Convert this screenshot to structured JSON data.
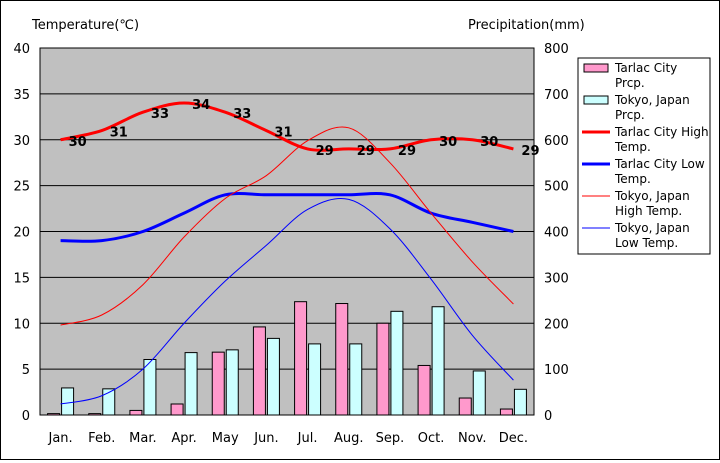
{
  "chart_data": {
    "type": "bar",
    "left_axis_title": "Temperature(℃)",
    "right_axis_title": "Precipitation(mm)",
    "categories": [
      "Jan.",
      "Feb.",
      "Mar.",
      "Apr.",
      "May",
      "Jun.",
      "Jul.",
      "Aug.",
      "Sep.",
      "Oct.",
      "Nov.",
      "Dec."
    ],
    "temp_axis": {
      "min": 0,
      "max": 40,
      "step": 5,
      "ticks": [
        "0",
        "5",
        "10",
        "15",
        "20",
        "25",
        "30",
        "35",
        "40"
      ]
    },
    "precip_axis": {
      "min": 0,
      "max": 800,
      "step": 100,
      "ticks": [
        "0",
        "100",
        "200",
        "300",
        "400",
        "500",
        "600",
        "700",
        "800"
      ]
    },
    "grid": true,
    "legend_placement": "right",
    "bar_series": [
      {
        "name": "Tarlac City Prcp.",
        "legend_lines": [
          "Tarlac City",
          "Prcp."
        ],
        "color": "#ff99cc",
        "axis": "precip",
        "values": [
          3,
          3,
          10,
          24,
          137,
          192,
          247,
          243,
          200,
          108,
          37,
          13
        ]
      },
      {
        "name": "Tokyo, Japan Prcp.",
        "legend_lines": [
          "Tokyo, Japan",
          "Prcp."
        ],
        "color": "#ccffff",
        "axis": "precip",
        "values": [
          59,
          57,
          121,
          136,
          142,
          167,
          155,
          155,
          226,
          236,
          96,
          56
        ]
      }
    ],
    "line_series": [
      {
        "name": "Tarlac City High Temp.",
        "legend_lines": [
          "Tarlac City High",
          "Temp."
        ],
        "color": "#ff0000",
        "width": 3,
        "axis": "temp",
        "values": [
          30,
          31,
          33,
          34,
          33,
          31,
          29,
          29,
          29,
          30,
          30,
          29
        ],
        "labels": [
          "30",
          "31",
          "33",
          "34",
          "33",
          "31",
          "29",
          "29",
          "29",
          "30",
          "30",
          "29"
        ]
      },
      {
        "name": "Tarlac City Low Temp.",
        "legend_lines": [
          "Tarlac City Low",
          "Temp."
        ],
        "color": "#0000ff",
        "width": 3,
        "axis": "temp",
        "values": [
          19,
          19,
          20,
          22,
          24,
          24,
          24,
          24,
          24,
          22,
          21,
          20
        ]
      },
      {
        "name": "Tokyo, Japan High Temp.",
        "legend_lines": [
          "Tokyo, Japan",
          "High Temp."
        ],
        "color": "#ff0000",
        "width": 1,
        "axis": "temp",
        "values": [
          9.8,
          10.9,
          14.2,
          19.4,
          23.6,
          26.1,
          29.9,
          31.3,
          27.5,
          22.0,
          16.7,
          12.1
        ]
      },
      {
        "name": "Tokyo, Japan Low Temp.",
        "legend_lines": [
          "Tokyo, Japan",
          "Low Temp."
        ],
        "color": "#0000ff",
        "width": 1,
        "axis": "temp",
        "values": [
          1.2,
          2.1,
          5.0,
          10.0,
          14.6,
          18.5,
          22.4,
          23.5,
          20.3,
          14.8,
          8.7,
          3.8
        ]
      }
    ]
  }
}
